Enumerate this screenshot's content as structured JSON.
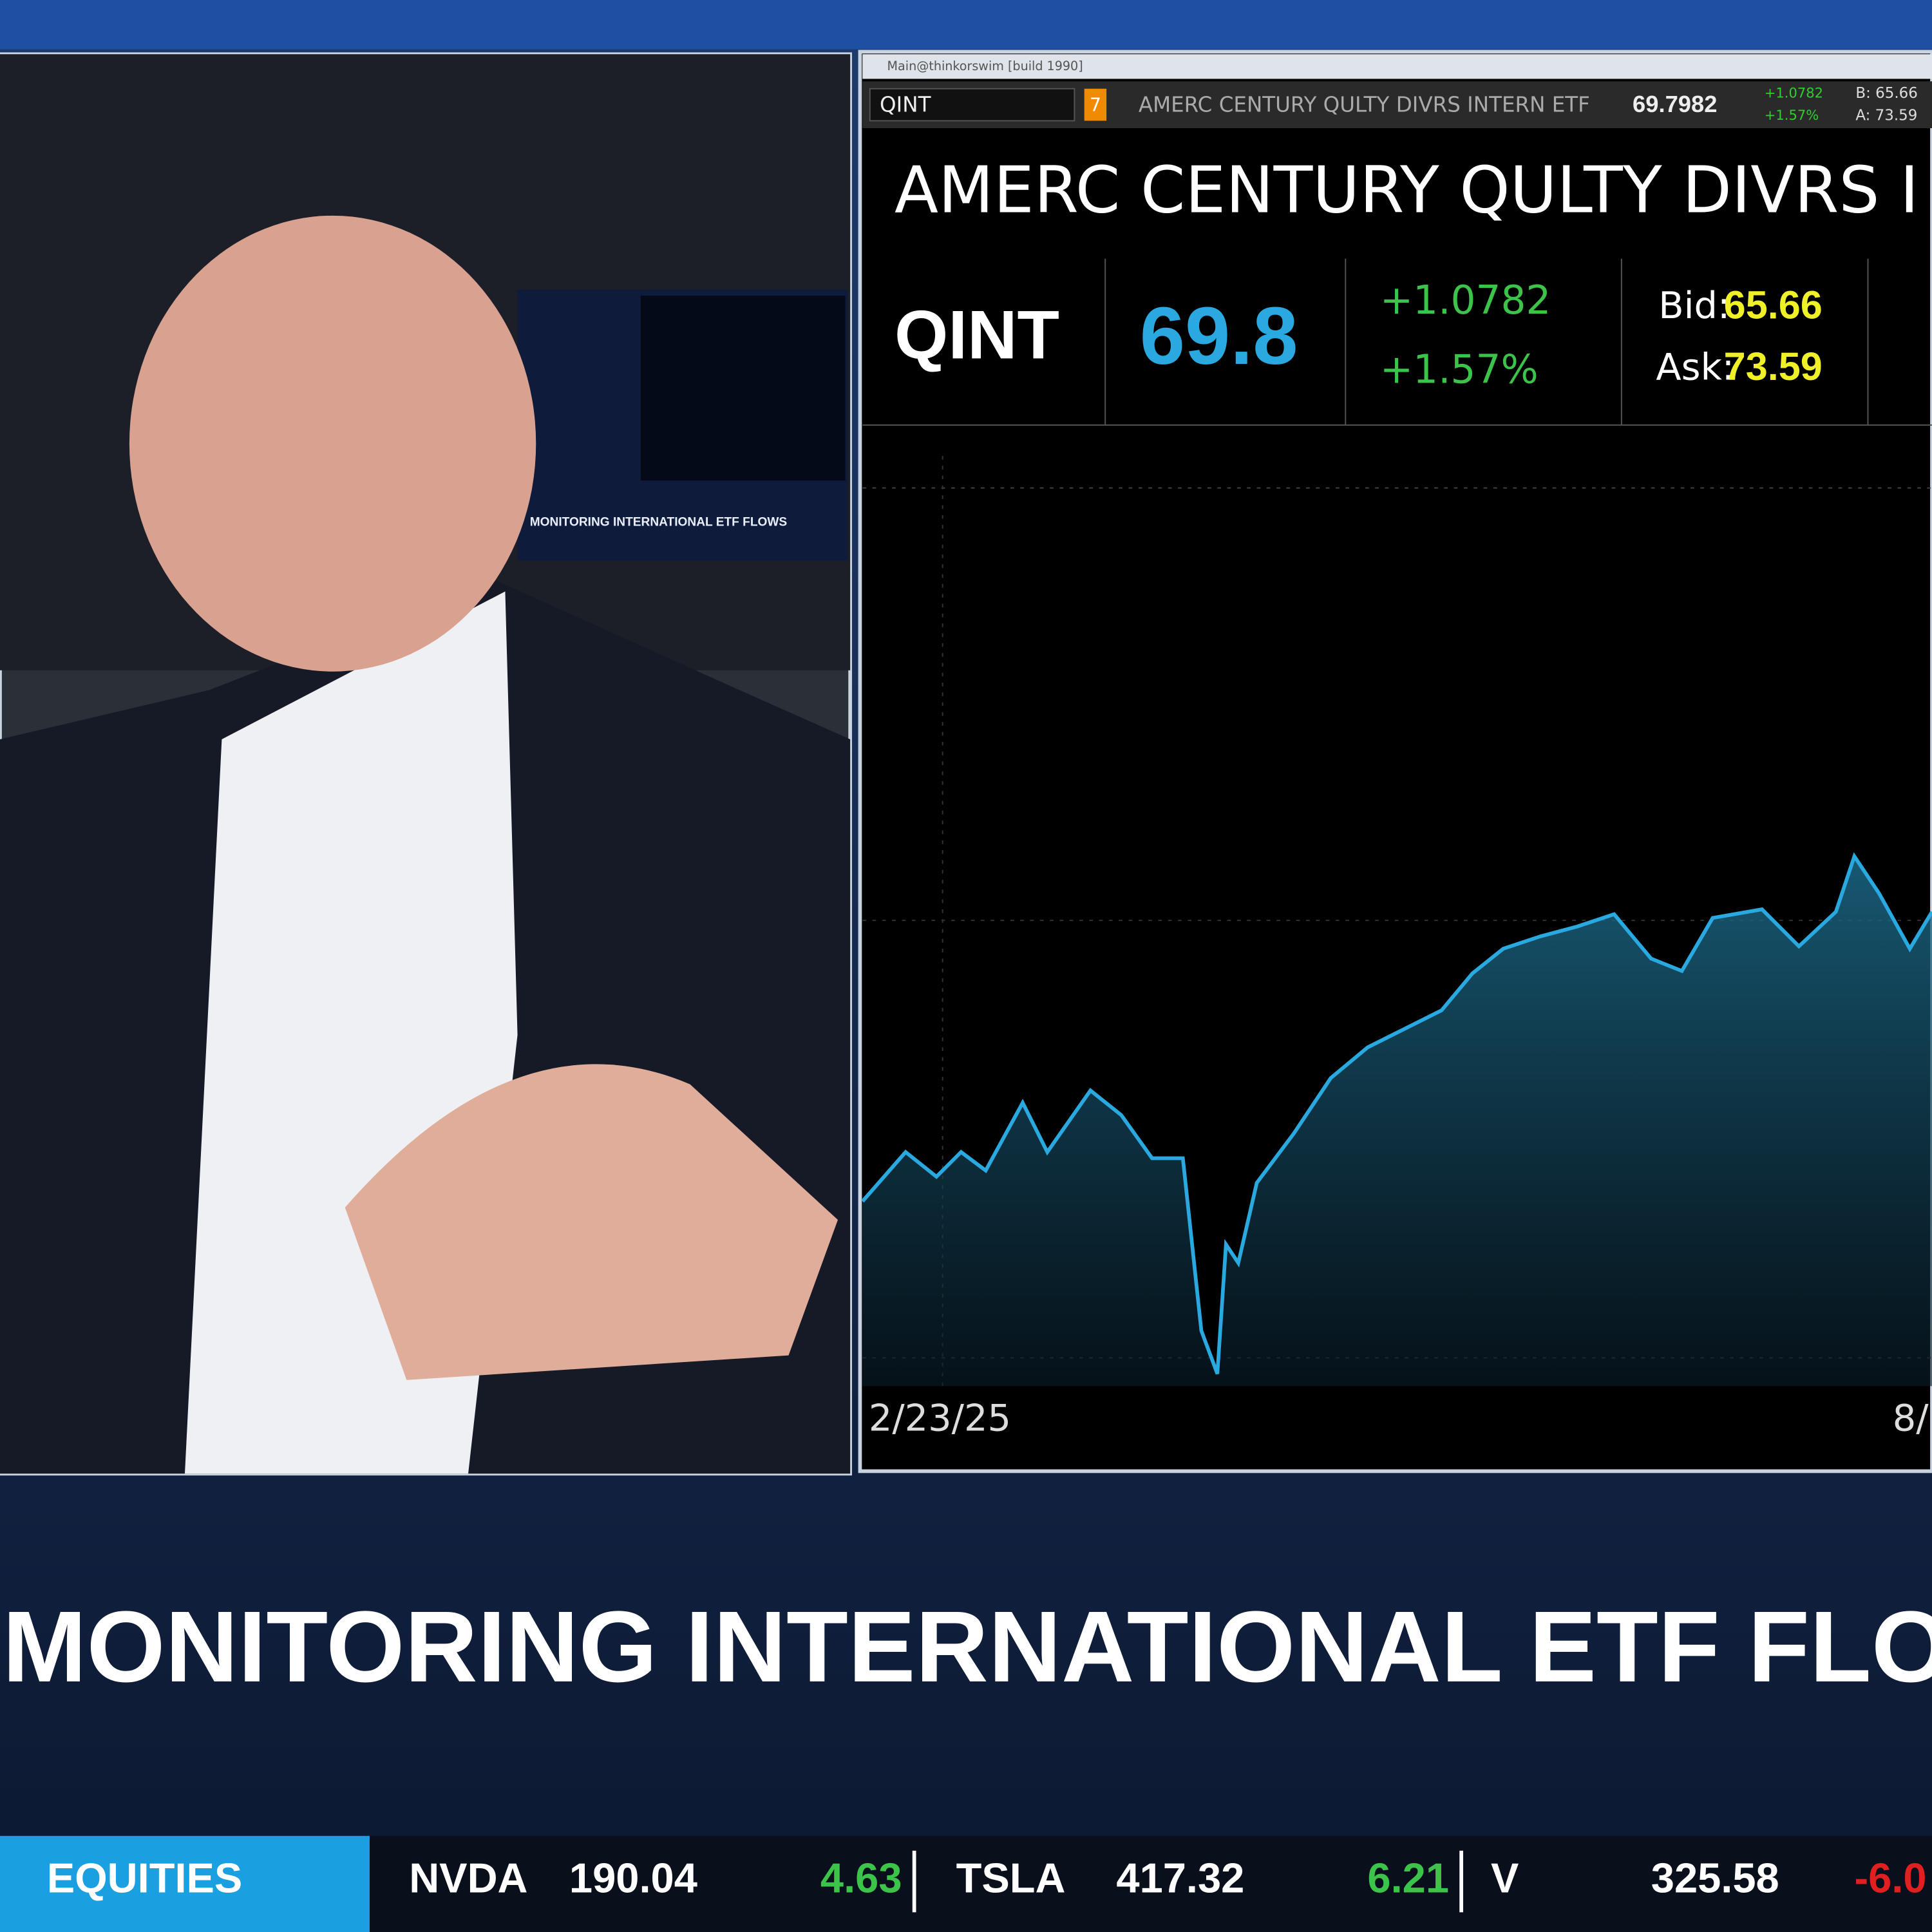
{
  "window": {
    "title": "Main@thinkorswim [build 1990]"
  },
  "quote_bar": {
    "symbol": "QINT",
    "badge": "7",
    "description": "AMERC CENTURY QULTY DIVRS INTERN ETF",
    "last": "69.7982",
    "change": "+1.0782",
    "percent": "+1.57%",
    "bid": "B: 65.66",
    "ask": "A: 73.59"
  },
  "header": {
    "name": "AMERC CENTURY QULTY DIVRS I",
    "symbol": "QINT",
    "price": "69.8",
    "change": "+1.0782",
    "percent": "+1.57%",
    "bid_label": "Bid:",
    "bid": "65.66",
    "ask_label": "Ask:",
    "ask": "73.59"
  },
  "chart": {
    "x_labels": [
      "2/23/25",
      "8/"
    ]
  },
  "inset_caption": "MONITORING INTERNATIONAL ETF FLOWS",
  "headline": "MONITORING INTERNATIONAL ETF FLO",
  "ticker": {
    "section": "EQUITIES",
    "items": [
      {
        "symbol": "NVDA",
        "price": "190.04",
        "change": "4.63"
      },
      {
        "symbol": "TSLA",
        "price": "417.32",
        "change": "6.21"
      },
      {
        "symbol": "V",
        "price": "325.58",
        "change": "-6.0"
      }
    ]
  }
}
